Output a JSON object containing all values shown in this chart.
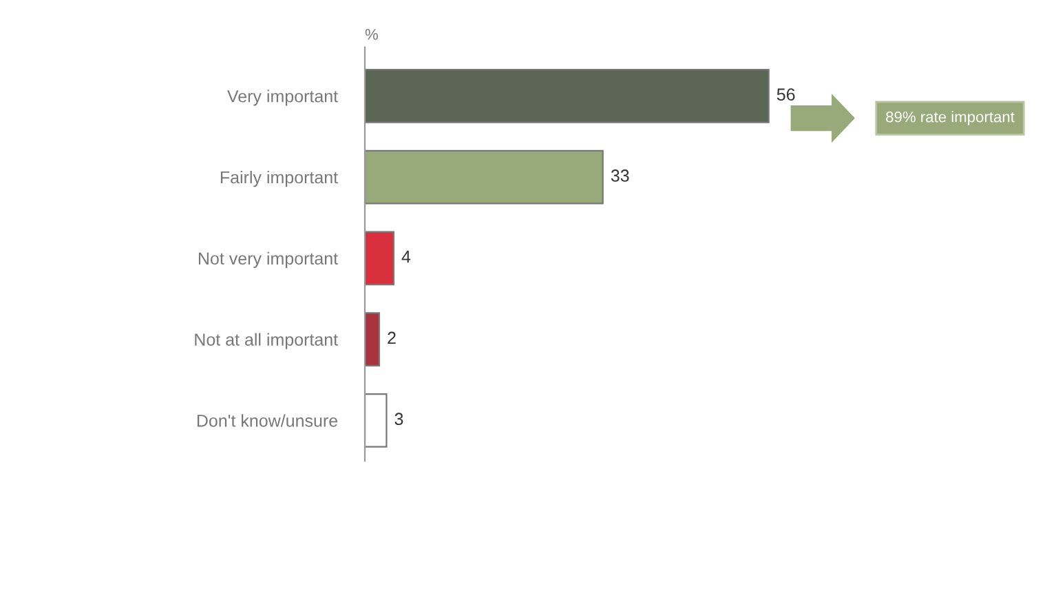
{
  "chart_data": {
    "type": "bar",
    "orientation": "horizontal",
    "xlabel": "%",
    "categories": [
      "Very important",
      "Fairly important",
      "Not very important",
      "Not at all important",
      "Don't know/unsure"
    ],
    "values": [
      56,
      33,
      4,
      2,
      3
    ],
    "colors": [
      "#5b6553",
      "#98a97a",
      "#d9303e",
      "#a8323e",
      "#ffffff"
    ],
    "tick_labels": "y",
    "data_labels": true,
    "grid": false,
    "legend": false,
    "annotations": [
      "89% rate important"
    ]
  }
}
